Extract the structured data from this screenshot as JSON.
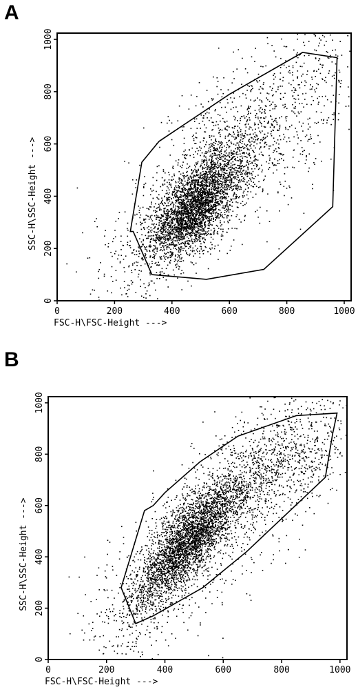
{
  "chart_data": [
    {
      "panel": "A",
      "type": "scatter",
      "xlabel": "FSC-H\\FSC-Height --->",
      "ylabel": "SSC-H\\SSC-Height --->",
      "xlim": [
        0,
        1024
      ],
      "ylim": [
        0,
        1024
      ],
      "x_ticks": [
        "0",
        "200",
        "400",
        "600",
        "800",
        "1000"
      ],
      "y_ticks": [
        "0",
        "200",
        "400",
        "600",
        "800",
        "1000"
      ],
      "density_centers": [
        {
          "x": 470,
          "y": 340,
          "sx": 70,
          "sy": 85,
          "rho": 0.55,
          "n": 2600
        },
        {
          "x": 560,
          "y": 480,
          "sx": 85,
          "sy": 75,
          "rho": 0.5,
          "n": 700
        },
        {
          "x": 650,
          "y": 620,
          "sx": 120,
          "sy": 130,
          "rho": 0.2,
          "n": 450
        }
      ],
      "sparse_points": 1100,
      "gate_polygon": [
        [
          265,
          265
        ],
        [
          330,
          100
        ],
        [
          520,
          82
        ],
        [
          720,
          120
        ],
        [
          960,
          360
        ],
        [
          975,
          930
        ],
        [
          855,
          950
        ],
        [
          600,
          790
        ],
        [
          355,
          610
        ],
        [
          295,
          530
        ],
        [
          255,
          265
        ]
      ],
      "grid": false,
      "legend": "none"
    },
    {
      "panel": "B",
      "type": "scatter",
      "xlabel": "FSC-H\\FSC-Height --->",
      "ylabel": "SSC-H\\SSC-Height --->",
      "xlim": [
        0,
        1024
      ],
      "ylim": [
        0,
        1024
      ],
      "x_ticks": [
        "0",
        "200",
        "400",
        "600",
        "800",
        "1000"
      ],
      "y_ticks": [
        "0",
        "200",
        "400",
        "600",
        "800",
        "1000"
      ],
      "density_centers": [
        {
          "x": 460,
          "y": 430,
          "sx": 80,
          "sy": 110,
          "rho": 0.75,
          "n": 2400
        },
        {
          "x": 560,
          "y": 580,
          "sx": 90,
          "sy": 80,
          "rho": 0.6,
          "n": 800
        },
        {
          "x": 750,
          "y": 750,
          "sx": 130,
          "sy": 110,
          "rho": 0.4,
          "n": 600
        }
      ],
      "sparse_points": 1200,
      "gate_polygon": [
        [
          250,
          280
        ],
        [
          300,
          140
        ],
        [
          360,
          170
        ],
        [
          530,
          280
        ],
        [
          680,
          420
        ],
        [
          950,
          710
        ],
        [
          975,
          880
        ],
        [
          990,
          960
        ],
        [
          850,
          950
        ],
        [
          650,
          870
        ],
        [
          520,
          770
        ],
        [
          400,
          650
        ],
        [
          360,
          600
        ],
        [
          330,
          580
        ]
      ],
      "grid": false,
      "legend": "none"
    }
  ],
  "panels": [
    {
      "letter": "A"
    },
    {
      "letter": "B"
    }
  ]
}
